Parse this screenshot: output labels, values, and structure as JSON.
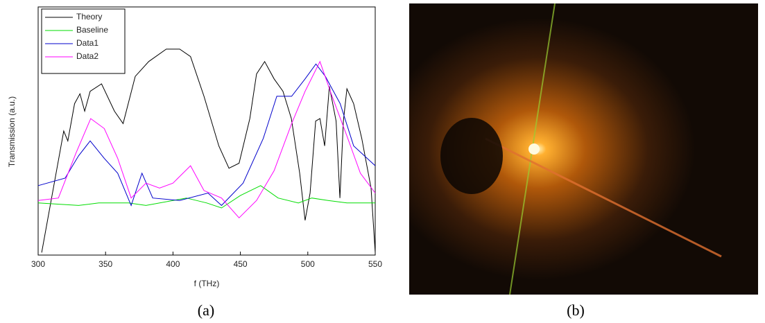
{
  "chart_data": {
    "type": "line",
    "xlabel": "f (THz)",
    "ylabel": "Transmission (a.u.)",
    "xlim": [
      300,
      550
    ],
    "xticks": [
      300,
      350,
      400,
      450,
      500,
      550
    ],
    "ylim": [
      0,
      1
    ],
    "series": [
      {
        "name": "Theory",
        "color": "#000000",
        "x": [
          302.6,
          319,
          322,
          327,
          331,
          334.5,
          338.6,
          347,
          356.6,
          363,
          372,
          382,
          395,
          405,
          413,
          423,
          434,
          441.5,
          449,
          457,
          462,
          468,
          475,
          481.6,
          487.8,
          494,
          498,
          501.7,
          505.8,
          509,
          512.5,
          516,
          521,
          523.8,
          526.4,
          529,
          534,
          540,
          546.9,
          550
        ],
        "values": [
          0.01,
          0.5,
          0.46,
          0.61,
          0.65,
          0.58,
          0.66,
          0.69,
          0.58,
          0.53,
          0.72,
          0.78,
          0.83,
          0.83,
          0.8,
          0.64,
          0.44,
          0.35,
          0.37,
          0.55,
          0.73,
          0.78,
          0.71,
          0.66,
          0.55,
          0.33,
          0.14,
          0.25,
          0.54,
          0.55,
          0.44,
          0.68,
          0.54,
          0.23,
          0.54,
          0.67,
          0.61,
          0.47,
          0.27,
          0.01
        ]
      },
      {
        "name": "Baseline",
        "color": "#00dd00",
        "x": [
          300,
          330,
          345,
          367,
          380,
          410,
          425,
          436,
          450,
          465,
          478,
          493,
          503,
          515,
          529,
          550
        ],
        "values": [
          0.21,
          0.2,
          0.21,
          0.21,
          0.2,
          0.23,
          0.21,
          0.19,
          0.24,
          0.28,
          0.23,
          0.21,
          0.23,
          0.22,
          0.21,
          0.21
        ]
      },
      {
        "name": "Data1",
        "color": "#0000cc",
        "x": [
          300,
          320,
          330,
          338.6,
          349,
          359,
          369,
          377,
          385,
          405,
          426,
          436,
          452,
          467,
          477,
          488,
          498,
          506,
          513,
          524,
          534,
          550
        ],
        "values": [
          0.28,
          0.31,
          0.4,
          0.46,
          0.39,
          0.33,
          0.2,
          0.33,
          0.23,
          0.22,
          0.25,
          0.2,
          0.29,
          0.47,
          0.64,
          0.64,
          0.71,
          0.77,
          0.72,
          0.61,
          0.44,
          0.36
        ]
      },
      {
        "name": "Data2",
        "color": "#ff00ff",
        "x": [
          300,
          315,
          328,
          339,
          349,
          359,
          369,
          380,
          390,
          400,
          413,
          423,
          436,
          449,
          462,
          475,
          488,
          498,
          509,
          518,
          529,
          539,
          550
        ],
        "values": [
          0.22,
          0.23,
          0.41,
          0.55,
          0.51,
          0.39,
          0.23,
          0.29,
          0.27,
          0.29,
          0.36,
          0.26,
          0.23,
          0.15,
          0.22,
          0.34,
          0.53,
          0.66,
          0.78,
          0.64,
          0.48,
          0.33,
          0.25
        ]
      }
    ]
  },
  "captions": [
    "(a)",
    "(b)"
  ]
}
